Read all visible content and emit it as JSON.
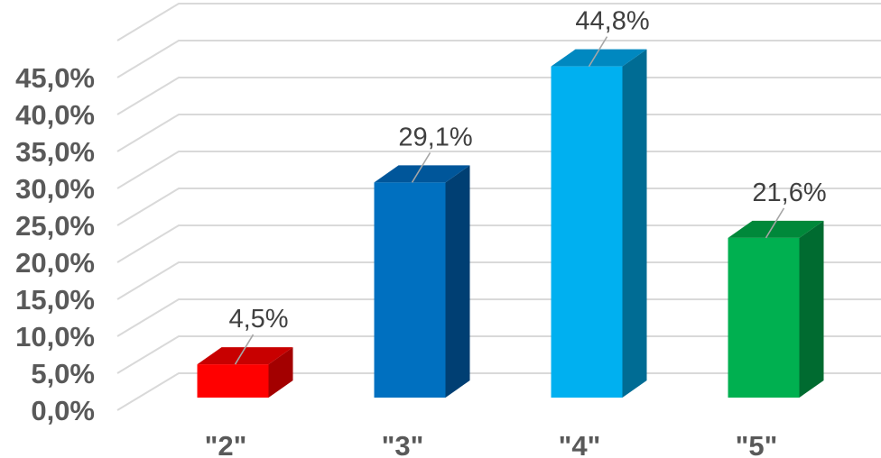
{
  "chart_data": {
    "type": "bar",
    "style": "3d-column",
    "title": "",
    "xlabel": "",
    "ylabel": "",
    "categories": [
      "\"2\"",
      "\"3\"",
      "\"4\"",
      "\"5\""
    ],
    "values": [
      4.5,
      29.1,
      44.8,
      21.6
    ],
    "data_labels": [
      "4,5%",
      "29,1%",
      "44,8%",
      "21,6%"
    ],
    "ylim": [
      0,
      50
    ],
    "yticks": [
      0,
      5,
      10,
      15,
      20,
      25,
      30,
      35,
      40,
      45
    ],
    "ytick_labels": [
      "0,0%",
      "5,0%",
      "10,0%",
      "15,0%",
      "20,0%",
      "25,0%",
      "30,0%",
      "35,0%",
      "40,0%",
      "45,0%"
    ],
    "grid": true,
    "legend": "none",
    "colors": {
      "front": [
        "#ff0000",
        "#0070c0",
        "#00b0f0",
        "#00b050"
      ],
      "side": [
        "#a30000",
        "#003f73",
        "#006c94",
        "#006b30"
      ],
      "top": [
        "#c80000",
        "#00569a",
        "#0088c0",
        "#00883a"
      ],
      "gridline": "#d9d9d9",
      "tick_text": "#595959",
      "label_text": "#404040"
    }
  }
}
